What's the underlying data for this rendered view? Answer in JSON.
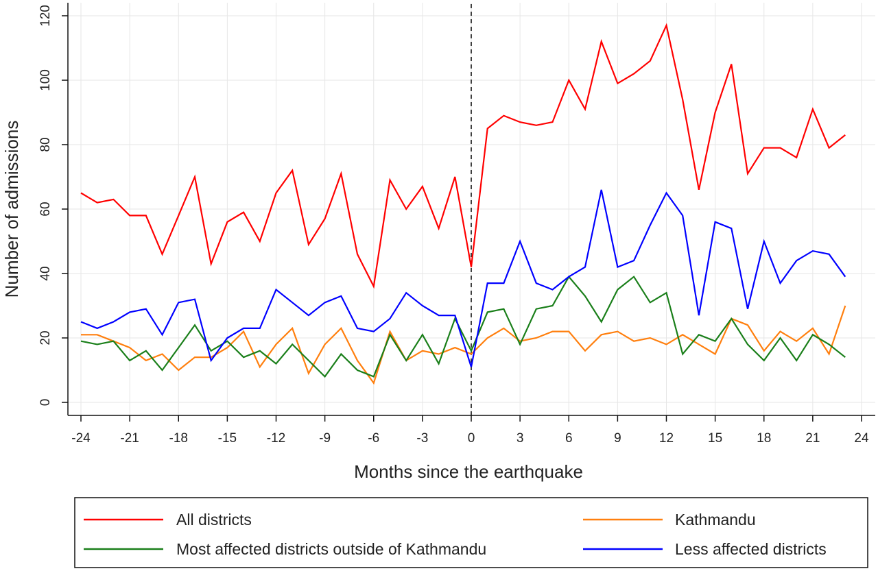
{
  "chart_data": {
    "type": "line",
    "xlabel": "Months since the earthquake",
    "ylabel": "Number of admissions",
    "xlim": [
      -24,
      24
    ],
    "ylim": [
      0,
      120
    ],
    "xticks": [
      -24,
      -21,
      -18,
      -15,
      -12,
      -9,
      -6,
      -3,
      0,
      3,
      6,
      9,
      12,
      15,
      18,
      21,
      24
    ],
    "yticks": [
      0,
      20,
      40,
      60,
      80,
      100,
      120
    ],
    "grid": true,
    "reference_line": {
      "x": 0,
      "style": "dashed"
    },
    "legend_placement": "bottom",
    "x": [
      -24,
      -23,
      -22,
      -21,
      -20,
      -19,
      -18,
      -17,
      -16,
      -15,
      -14,
      -13,
      -12,
      -11,
      -10,
      -9,
      -8,
      -7,
      -6,
      -5,
      -4,
      -3,
      -2,
      -1,
      0,
      1,
      2,
      3,
      4,
      5,
      6,
      7,
      8,
      9,
      10,
      11,
      12,
      13,
      14,
      15,
      16,
      17,
      18,
      19,
      20,
      21,
      22,
      23
    ],
    "series": [
      {
        "name": "All districts",
        "color": "#ff0000",
        "values": [
          65,
          62,
          63,
          58,
          58,
          46,
          58,
          70,
          43,
          56,
          59,
          50,
          65,
          72,
          49,
          57,
          71,
          46,
          36,
          69,
          60,
          67,
          54,
          70,
          42,
          85,
          89,
          87,
          86,
          87,
          100,
          91,
          112,
          99,
          102,
          106,
          117,
          94,
          66,
          90,
          105,
          71,
          79,
          79,
          76,
          91,
          79,
          83
        ]
      },
      {
        "name": "Kathmandu",
        "color": "#ff7f0e",
        "values": [
          21,
          21,
          19,
          17,
          13,
          15,
          10,
          14,
          14,
          17,
          22,
          11,
          18,
          23,
          9,
          18,
          23,
          13,
          6,
          22,
          13,
          16,
          15,
          17,
          15,
          20,
          23,
          19,
          20,
          22,
          22,
          16,
          21,
          22,
          19,
          20,
          18,
          21,
          18,
          15,
          26,
          24,
          16,
          22,
          19,
          23,
          15,
          30
        ]
      },
      {
        "name": "Most affected districts outside of Kathmandu",
        "color": "#1a7f1a",
        "values": [
          19,
          18,
          19,
          13,
          16,
          10,
          17,
          24,
          16,
          19,
          14,
          16,
          12,
          18,
          13,
          8,
          15,
          10,
          8,
          21,
          13,
          21,
          12,
          26,
          16,
          28,
          29,
          18,
          29,
          30,
          39,
          33,
          25,
          35,
          39,
          31,
          34,
          15,
          21,
          19,
          26,
          18,
          13,
          20,
          13,
          21,
          18,
          14
        ]
      },
      {
        "name": "Less affected districts",
        "color": "#0000ff",
        "values": [
          25,
          23,
          25,
          28,
          29,
          21,
          31,
          32,
          13,
          20,
          23,
          23,
          35,
          31,
          27,
          31,
          33,
          23,
          22,
          26,
          34,
          30,
          27,
          27,
          11,
          37,
          37,
          50,
          37,
          35,
          39,
          42,
          66,
          42,
          44,
          55,
          65,
          58,
          27,
          56,
          54,
          29,
          50,
          37,
          44,
          47,
          46,
          39
        ]
      }
    ]
  },
  "legend": {
    "items": [
      {
        "label": "All districts",
        "color": "#ff0000"
      },
      {
        "label": "Kathmandu",
        "color": "#ff7f0e"
      },
      {
        "label": "Most affected districts outside of Kathmandu",
        "color": "#1a7f1a"
      },
      {
        "label": "Less affected districts",
        "color": "#0000ff"
      }
    ]
  }
}
